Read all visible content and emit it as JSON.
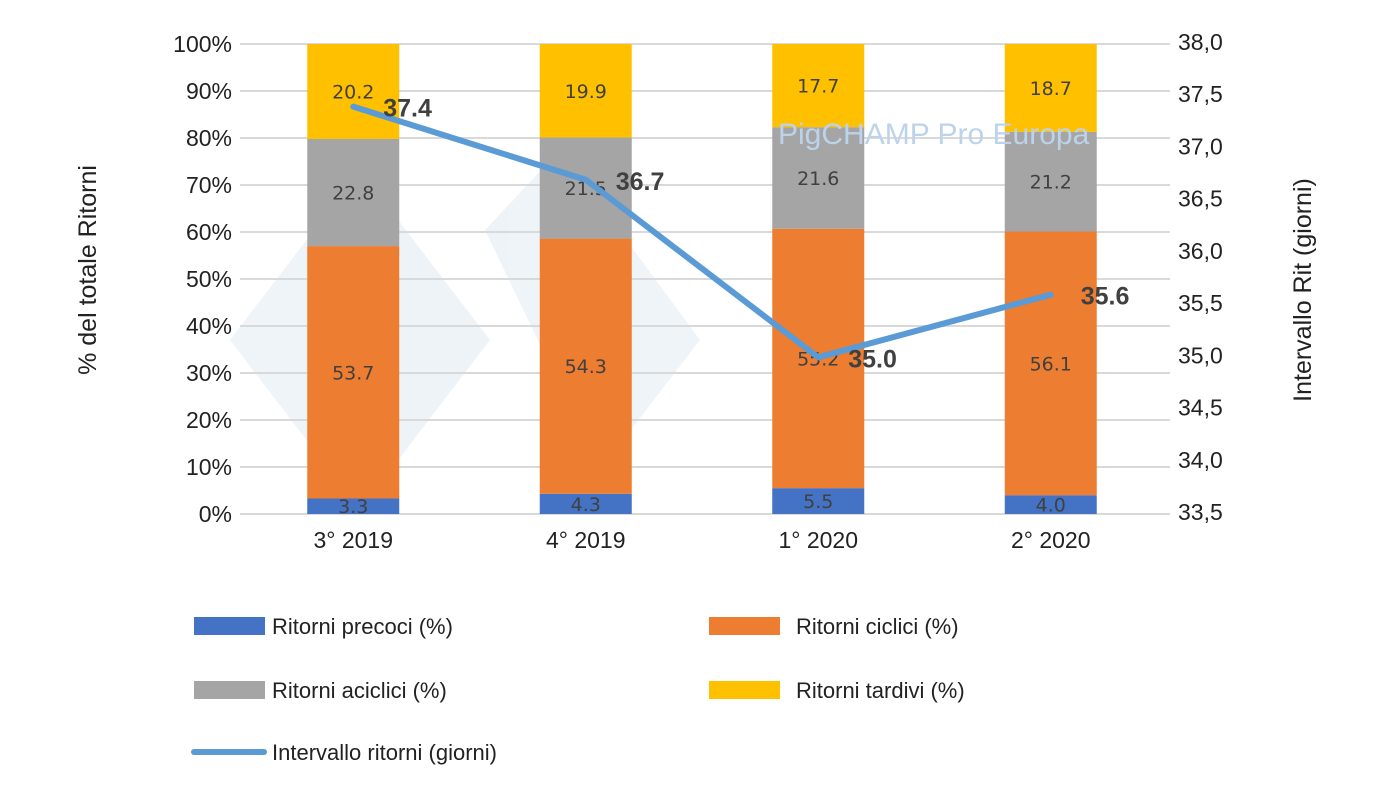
{
  "chart_data": {
    "type": "bar",
    "stacked": true,
    "categories": [
      "3° 2019",
      "4° 2019",
      "1° 2020",
      "2° 2020"
    ],
    "series": [
      {
        "name": "Ritorni precoci (%)",
        "values": [
          3.3,
          4.3,
          5.5,
          4.0
        ],
        "color": "#4472C4",
        "axis": "left"
      },
      {
        "name": "Ritorni ciclici (%)",
        "values": [
          53.7,
          54.3,
          55.2,
          56.1
        ],
        "color": "#ED7D31",
        "axis": "left"
      },
      {
        "name": "Ritorni aciclici (%)",
        "values": [
          22.8,
          21.5,
          21.6,
          21.2
        ],
        "color": "#A5A5A5",
        "axis": "left"
      },
      {
        "name": "Ritorni tardivi (%)",
        "values": [
          20.2,
          19.9,
          17.7,
          18.7
        ],
        "color": "#FFC000",
        "axis": "left"
      },
      {
        "name": "Intervallo ritorni (giorni)",
        "type": "line",
        "values": [
          37.4,
          36.7,
          35.0,
          35.6
        ],
        "color": "#5B9BD5",
        "axis": "right"
      }
    ],
    "ylabel": "% del totale Ritorni",
    "ylim": [
      0,
      100
    ],
    "yticks": [
      "0%",
      "10%",
      "20%",
      "30%",
      "40%",
      "50%",
      "60%",
      "70%",
      "80%",
      "90%",
      "100%"
    ],
    "y2label": "Intervallo Rit (giorni)",
    "y2lim": [
      33.5,
      38.0
    ],
    "y2ticks": [
      "33,5",
      "34,0",
      "34,5",
      "35,0",
      "35,5",
      "36,0",
      "36,5",
      "37,0",
      "37,5",
      "38,0"
    ],
    "line_labels": [
      "37.4",
      "36.7",
      "35.0",
      "35.6"
    ],
    "grid": true,
    "legend_position": "bottom"
  },
  "watermark": "PigCHAMP Pro Europa"
}
